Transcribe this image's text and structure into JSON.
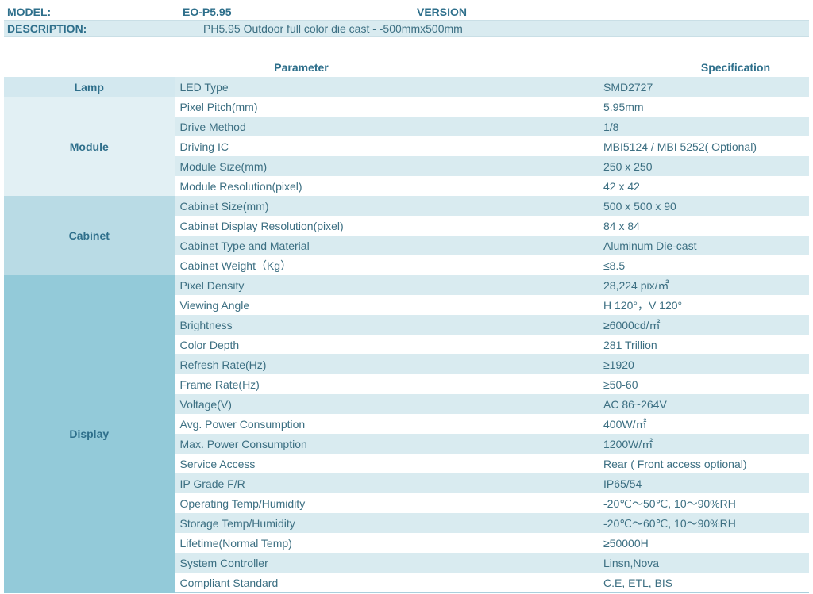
{
  "header": {
    "model_label": "MODEL:",
    "model_value": "EO-P5.95",
    "version_label": "VERSION",
    "description_label": "DESCRIPTION:",
    "description_value": "PH5.95  Outdoor full color   die cast - -500mmx500mm"
  },
  "columns": {
    "parameter": "Parameter",
    "specification": "Specification"
  },
  "groups": [
    {
      "name": "Lamp",
      "rows": [
        {
          "param": "LED Type",
          "spec": "SMD2727"
        }
      ]
    },
    {
      "name": "Module",
      "rows": [
        {
          "param": "Pixel Pitch(mm)",
          "spec": "5.95mm"
        },
        {
          "param": "Drive Method",
          "spec": "1/8"
        },
        {
          "param": "Driving IC",
          "spec": "MBI5124 /   MBI 5252( Optional)"
        },
        {
          "param": "Module Size(mm)",
          "spec": "250 x 250"
        },
        {
          "param": "Module Resolution(pixel)",
          "spec": "42 x 42"
        }
      ]
    },
    {
      "name": "Cabinet",
      "rows": [
        {
          "param": "Cabinet Size(mm)",
          "spec": "500 x 500 x 90"
        },
        {
          "param": "Cabinet Display Resolution(pixel)",
          "spec": "84 x 84"
        },
        {
          "param": "Cabinet Type and Material",
          "spec": "Aluminum Die-cast"
        },
        {
          "param": "Cabinet Weight（Kg）",
          "spec": "≤8.5"
        }
      ]
    },
    {
      "name": "Display",
      "rows": [
        {
          "param": "Pixel Density",
          "spec": "28,224 pix/㎡"
        },
        {
          "param": "Viewing Angle",
          "spec": "H 120°，V 120°"
        },
        {
          "param": "Brightness",
          "spec": "≥6000cd/㎡"
        },
        {
          "param": "Color Depth",
          "spec": "281   Trillion"
        },
        {
          "param": "Refresh Rate(Hz)",
          "spec": "≥1920"
        },
        {
          "param": "Frame Rate(Hz)",
          "spec": "≥50-60"
        },
        {
          "param": "Voltage(V)",
          "spec": "AC   86~264V"
        },
        {
          "param": "Avg. Power Consumption",
          "spec": "400W/㎡"
        },
        {
          "param": "Max. Power Consumption",
          "spec": "1200W/㎡"
        },
        {
          "param": "Service Access",
          "spec": "Rear (    Front access optional)"
        },
        {
          "param": "IP Grade F/R",
          "spec": "IP65/54"
        },
        {
          "param": "Operating Temp/Humidity",
          "spec": "-20℃～50℃, 10～90%RH"
        },
        {
          "param": "Storage Temp/Humidity",
          "spec": "-20℃～60℃, 10～90%RH"
        },
        {
          "param": "Lifetime(Normal Temp)",
          "spec": "≥50000H"
        },
        {
          "param": "System Controller",
          "spec": "Linsn,Nova"
        },
        {
          "param": "Compliant Standard",
          "spec": "C.E, ETL, BIS"
        }
      ]
    }
  ]
}
